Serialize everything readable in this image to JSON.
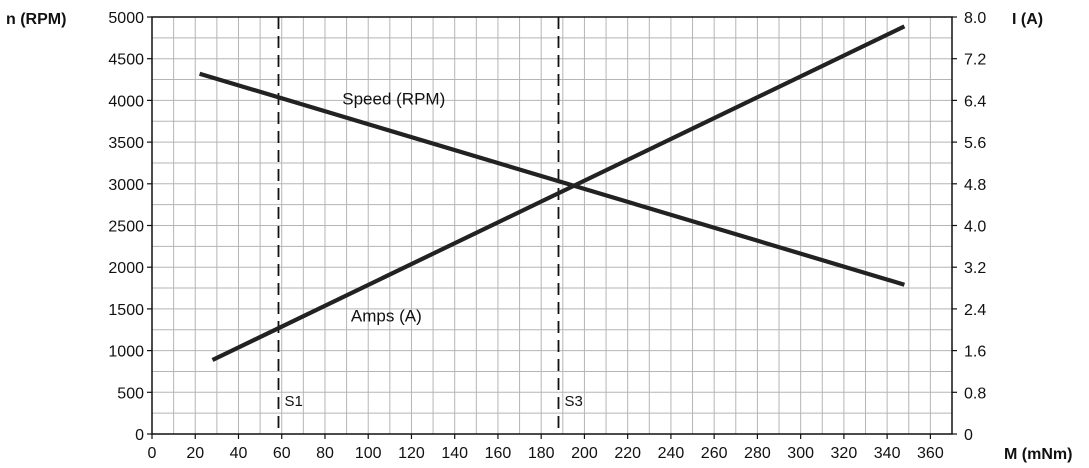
{
  "chart_data": {
    "type": "line",
    "xlabel": "M (mNm)",
    "ylabel_left": "n (RPM)",
    "ylabel_right": "I (A)",
    "xlim": [
      0,
      370
    ],
    "ylim_left": [
      0,
      5000
    ],
    "ylim_right": [
      0,
      8.0
    ],
    "grid": true,
    "x_ticks": [
      "0",
      "20",
      "40",
      "60",
      "80",
      "100",
      "120",
      "140",
      "160",
      "180",
      "200",
      "220",
      "240",
      "260",
      "280",
      "300",
      "320",
      "340",
      "360"
    ],
    "y_left_ticks": [
      "0",
      "500",
      "1000",
      "1500",
      "2000",
      "2500",
      "3000",
      "3500",
      "4000",
      "4500",
      "5000"
    ],
    "y_right_ticks": [
      "0",
      "0.8",
      "1.6",
      "2.4",
      "3.2",
      "4.0",
      "4.8",
      "5.6",
      "6.4",
      "7.2",
      "8.0"
    ],
    "series": [
      {
        "name": "Speed (RPM)",
        "axis": "left",
        "x": [
          22,
          348
        ],
        "y": [
          4320,
          1790
        ]
      },
      {
        "name": "Amps (A)",
        "axis": "right",
        "x": [
          28,
          348
        ],
        "y": [
          1.42,
          7.82
        ]
      }
    ],
    "annotations": [
      {
        "text": "Speed (RPM)",
        "x": 88,
        "y_left": 3950
      },
      {
        "text": "Amps (A)",
        "x": 92,
        "y_left": 1350
      }
    ],
    "markers": [
      {
        "label": "S1",
        "x": 58.5
      },
      {
        "label": "S3",
        "x": 188
      }
    ]
  }
}
